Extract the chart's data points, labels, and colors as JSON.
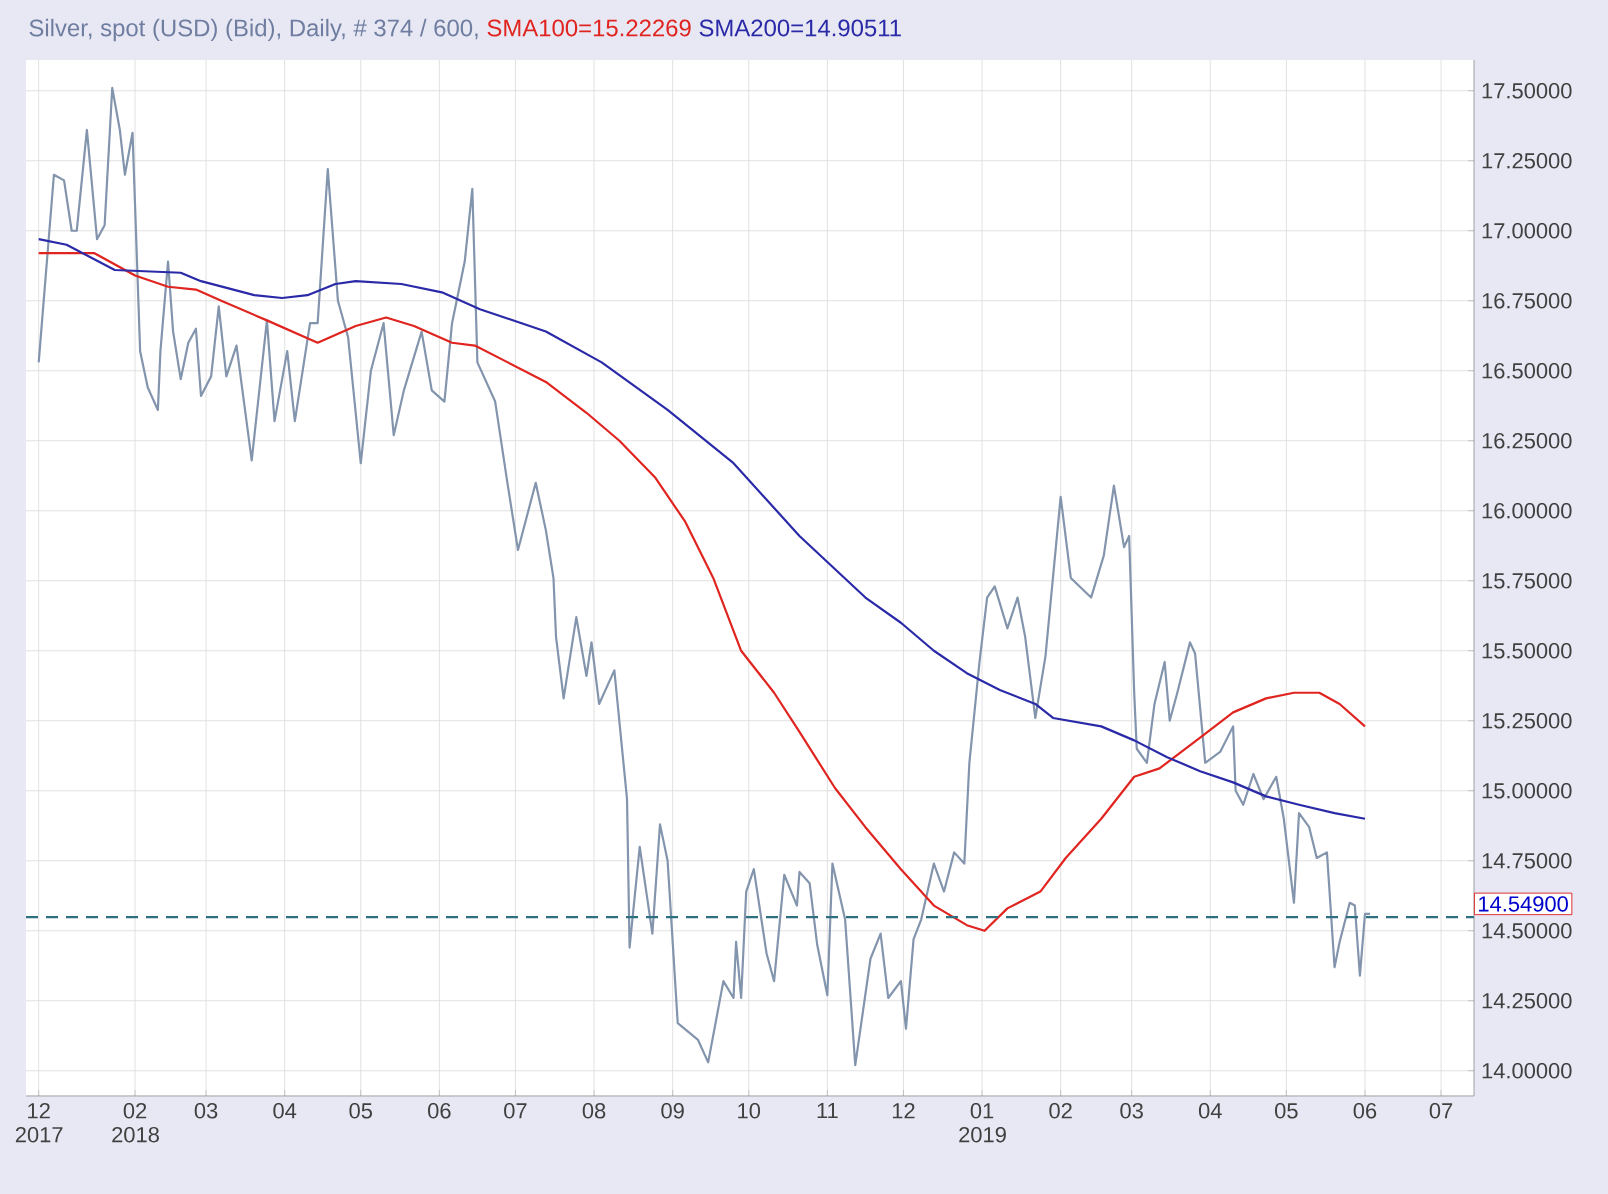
{
  "chart_data": {
    "type": "line",
    "title": "Silver, spot (USD) (Bid), Daily, # 374 / 600,",
    "xlim": [
      "2017-12-20",
      "2019-07-14"
    ],
    "ylim": [
      13.91,
      17.61
    ],
    "xticks": [
      {
        "value": "2017-12-25",
        "label": "12 2017"
      },
      {
        "value": "2018-02-01",
        "label": "02 2018"
      },
      {
        "value": "2018-03-01",
        "label": "03"
      },
      {
        "value": "2018-04-01",
        "label": "04"
      },
      {
        "value": "2018-05-01",
        "label": "05"
      },
      {
        "value": "2018-06-01",
        "label": "06"
      },
      {
        "value": "2018-07-01",
        "label": "07"
      },
      {
        "value": "2018-08-01",
        "label": "08"
      },
      {
        "value": "2018-09-01",
        "label": "09"
      },
      {
        "value": "2018-10-01",
        "label": "10"
      },
      {
        "value": "2018-11-01",
        "label": "11"
      },
      {
        "value": "2018-12-01",
        "label": "12"
      },
      {
        "value": "2019-01-01",
        "label": "01 2019"
      },
      {
        "value": "2019-02-01",
        "label": "02"
      },
      {
        "value": "2019-03-01",
        "label": "03"
      },
      {
        "value": "2019-04-01",
        "label": "04"
      },
      {
        "value": "2019-05-01",
        "label": "05"
      },
      {
        "value": "2019-06-01",
        "label": "06"
      },
      {
        "value": "2019-07-01",
        "label": "07"
      }
    ],
    "yticks": [
      {
        "value": 14,
        "label": "14.00000"
      },
      {
        "value": 14.25,
        "label": "14.25000"
      },
      {
        "value": 14.5,
        "label": "14.50000"
      },
      {
        "value": 14.75,
        "label": "14.75000"
      },
      {
        "value": 15,
        "label": "15.00000"
      },
      {
        "value": 15.25,
        "label": "15.25000"
      },
      {
        "value": 15.5,
        "label": "15.50000"
      },
      {
        "value": 15.75,
        "label": "15.75000"
      },
      {
        "value": 16,
        "label": "16.00000"
      },
      {
        "value": 16.25,
        "label": "16.25000"
      },
      {
        "value": 16.5,
        "label": "16.50000"
      },
      {
        "value": 16.75,
        "label": "16.75000"
      },
      {
        "value": 17,
        "label": "17.00000"
      },
      {
        "value": 17.25,
        "label": "17.25000"
      },
      {
        "value": 17.5,
        "label": "17.50000"
      }
    ],
    "grid": true,
    "ref_lines": [
      {
        "axis": "y",
        "value": 14.549,
        "label": "14.54900",
        "color": "#2f7080",
        "line_style": "dashed"
      }
    ],
    "series": [
      {
        "color": "#8394ad",
        "x": [
          "2017-12-25",
          "2017-12-31",
          "2018-01-04",
          "2018-01-07",
          "2018-01-09",
          "2018-01-13",
          "2018-01-17",
          "2018-01-20",
          "2018-01-23",
          "2018-01-26",
          "2018-01-28",
          "2018-01-31",
          "2018-02-03",
          "2018-02-06",
          "2018-02-10",
          "2018-02-11",
          "2018-02-14",
          "2018-02-16",
          "2018-02-19",
          "2018-02-22",
          "2018-02-25",
          "2018-02-27",
          "2018-03-03",
          "2018-03-06",
          "2018-03-09",
          "2018-03-13",
          "2018-03-19",
          "2018-03-25",
          "2018-03-28",
          "2018-04-02",
          "2018-04-05",
          "2018-04-11",
          "2018-04-14",
          "2018-04-18",
          "2018-04-22",
          "2018-04-26",
          "2018-05-01",
          "2018-05-05",
          "2018-05-10",
          "2018-05-14",
          "2018-05-18",
          "2018-05-25",
          "2018-05-29",
          "2018-06-03",
          "2018-06-06",
          "2018-06-11",
          "2018-06-14",
          "2018-06-16",
          "2018-06-23",
          "2018-06-28",
          "2018-07-02",
          "2018-07-09",
          "2018-07-13",
          "2018-07-16",
          "2018-07-17",
          "2018-07-20",
          "2018-07-25",
          "2018-07-29",
          "2018-07-31",
          "2018-08-03",
          "2018-08-09",
          "2018-08-14",
          "2018-08-15",
          "2018-08-19",
          "2018-08-24",
          "2018-08-27",
          "2018-08-30",
          "2018-09-03",
          "2018-09-11",
          "2018-09-15",
          "2018-09-21",
          "2018-09-25",
          "2018-09-26",
          "2018-09-28",
          "2018-09-30",
          "2018-10-03",
          "2018-10-08",
          "2018-10-11",
          "2018-10-15",
          "2018-10-20",
          "2018-10-21",
          "2018-10-25",
          "2018-10-28",
          "2018-11-01",
          "2018-11-03",
          "2018-11-08",
          "2018-11-12",
          "2018-11-18",
          "2018-11-22",
          "2018-11-25",
          "2018-11-30",
          "2018-12-02",
          "2018-12-05",
          "2018-12-08",
          "2018-12-13",
          "2018-12-17",
          "2018-12-21",
          "2018-12-25",
          "2018-12-27",
          "2018-12-31",
          "2019-01-03",
          "2019-01-06",
          "2019-01-11",
          "2019-01-15",
          "2019-01-18",
          "2019-01-22",
          "2019-01-26",
          "2019-02-01",
          "2019-02-05",
          "2019-02-13",
          "2019-02-18",
          "2019-02-22",
          "2019-02-26",
          "2019-02-28",
          "2019-03-02",
          "2019-03-03",
          "2019-03-07",
          "2019-03-10",
          "2019-03-14",
          "2019-03-16",
          "2019-03-19",
          "2019-03-24",
          "2019-03-26",
          "2019-03-30",
          "2019-04-05",
          "2019-04-10",
          "2019-04-11",
          "2019-04-14",
          "2019-04-18",
          "2019-04-22",
          "2019-04-27",
          "2019-04-30",
          "2019-05-04",
          "2019-05-06",
          "2019-05-10",
          "2019-05-13",
          "2019-05-17",
          "2019-05-20",
          "2019-05-22",
          "2019-05-26",
          "2019-05-28",
          "2019-05-30",
          "2019-06-01",
          "2019-06-03"
        ],
        "values": [
          16.53,
          17.2,
          17.18,
          17.0,
          17.0,
          17.36,
          16.97,
          17.02,
          17.51,
          17.36,
          17.2,
          17.35,
          16.57,
          16.44,
          16.36,
          16.57,
          16.89,
          16.64,
          16.47,
          16.6,
          16.65,
          16.41,
          16.48,
          16.73,
          16.48,
          16.59,
          16.18,
          16.68,
          16.32,
          16.57,
          16.32,
          16.67,
          16.67,
          17.22,
          16.75,
          16.62,
          16.17,
          16.5,
          16.67,
          16.27,
          16.43,
          16.64,
          16.43,
          16.39,
          16.67,
          16.89,
          17.15,
          16.53,
          16.39,
          16.09,
          15.86,
          16.1,
          15.93,
          15.76,
          15.55,
          15.33,
          15.62,
          15.41,
          15.53,
          15.31,
          15.43,
          14.97,
          14.44,
          14.8,
          14.49,
          14.88,
          14.75,
          14.17,
          14.11,
          14.03,
          14.32,
          14.26,
          14.46,
          14.26,
          14.64,
          14.72,
          14.42,
          14.32,
          14.7,
          14.59,
          14.71,
          14.67,
          14.45,
          14.27,
          14.74,
          14.54,
          14.02,
          14.4,
          14.49,
          14.26,
          14.32,
          14.15,
          14.47,
          14.54,
          14.74,
          14.64,
          14.78,
          14.74,
          15.1,
          15.46,
          15.69,
          15.73,
          15.58,
          15.69,
          15.55,
          15.26,
          15.48,
          16.05,
          15.76,
          15.69,
          15.84,
          16.09,
          15.87,
          15.91,
          15.35,
          15.15,
          15.1,
          15.31,
          15.46,
          15.25,
          15.35,
          15.53,
          15.49,
          15.1,
          15.14,
          15.23,
          15.0,
          14.95,
          15.06,
          14.97,
          15.05,
          14.9,
          14.6,
          14.92,
          14.87,
          14.76,
          14.78,
          14.37,
          14.46,
          14.6,
          14.59,
          14.34,
          14.56,
          14.56
        ]
      },
      {
        "name": "SMA100=15.22269",
        "color": "#e0241f",
        "x": [
          "2017-12-25",
          "2018-01-16",
          "2018-02-01",
          "2018-02-14",
          "2018-02-25",
          "2018-03-07",
          "2018-03-25",
          "2018-04-14",
          "2018-04-29",
          "2018-05-11",
          "2018-05-22",
          "2018-06-06",
          "2018-06-15",
          "2018-06-28",
          "2018-07-13",
          "2018-07-29",
          "2018-08-11",
          "2018-08-25",
          "2018-09-06",
          "2018-09-17",
          "2018-09-28",
          "2018-10-11",
          "2018-10-21",
          "2018-11-04",
          "2018-11-16",
          "2018-11-30",
          "2018-12-13",
          "2018-12-26",
          "2019-01-02",
          "2019-01-11",
          "2019-01-24",
          "2019-02-03",
          "2019-02-17",
          "2019-03-02",
          "2019-03-12",
          "2019-03-28",
          "2019-04-10",
          "2019-04-23",
          "2019-05-04",
          "2019-05-14",
          "2019-05-22",
          "2019-06-01"
        ],
        "values": [
          16.92,
          16.92,
          16.84,
          16.8,
          16.79,
          16.75,
          16.68,
          16.6,
          16.66,
          16.69,
          16.66,
          16.6,
          16.59,
          16.53,
          16.46,
          16.35,
          16.25,
          16.12,
          15.96,
          15.76,
          15.5,
          15.35,
          15.21,
          15.01,
          14.87,
          14.72,
          14.59,
          14.52,
          14.5,
          14.58,
          14.64,
          14.76,
          14.9,
          15.05,
          15.08,
          15.19,
          15.28,
          15.33,
          15.35,
          15.35,
          15.31,
          15.23
        ]
      },
      {
        "name": "SMA200=14.90511",
        "color": "#2a2aa8",
        "x": [
          "2017-12-25",
          "2018-01-05",
          "2018-01-24",
          "2018-02-19",
          "2018-02-27",
          "2018-03-20",
          "2018-03-31",
          "2018-04-10",
          "2018-04-21",
          "2018-04-29",
          "2018-05-17",
          "2018-06-02",
          "2018-06-17",
          "2018-07-13",
          "2018-08-04",
          "2018-08-30",
          "2018-09-25",
          "2018-10-21",
          "2018-11-16",
          "2018-11-30",
          "2018-12-13",
          "2018-12-26",
          "2019-01-08",
          "2019-01-22",
          "2019-01-29",
          "2019-02-17",
          "2019-03-02",
          "2019-03-15",
          "2019-03-28",
          "2019-04-10",
          "2019-04-23",
          "2019-05-06",
          "2019-05-20",
          "2019-06-01"
        ],
        "values": [
          16.97,
          16.95,
          16.86,
          16.85,
          16.82,
          16.77,
          16.76,
          16.77,
          16.81,
          16.82,
          16.81,
          16.78,
          16.72,
          16.64,
          16.53,
          16.36,
          16.17,
          15.91,
          15.69,
          15.6,
          15.5,
          15.42,
          15.36,
          15.31,
          15.26,
          15.23,
          15.18,
          15.12,
          15.07,
          15.03,
          14.98,
          14.95,
          14.92,
          14.9
        ]
      }
    ]
  }
}
